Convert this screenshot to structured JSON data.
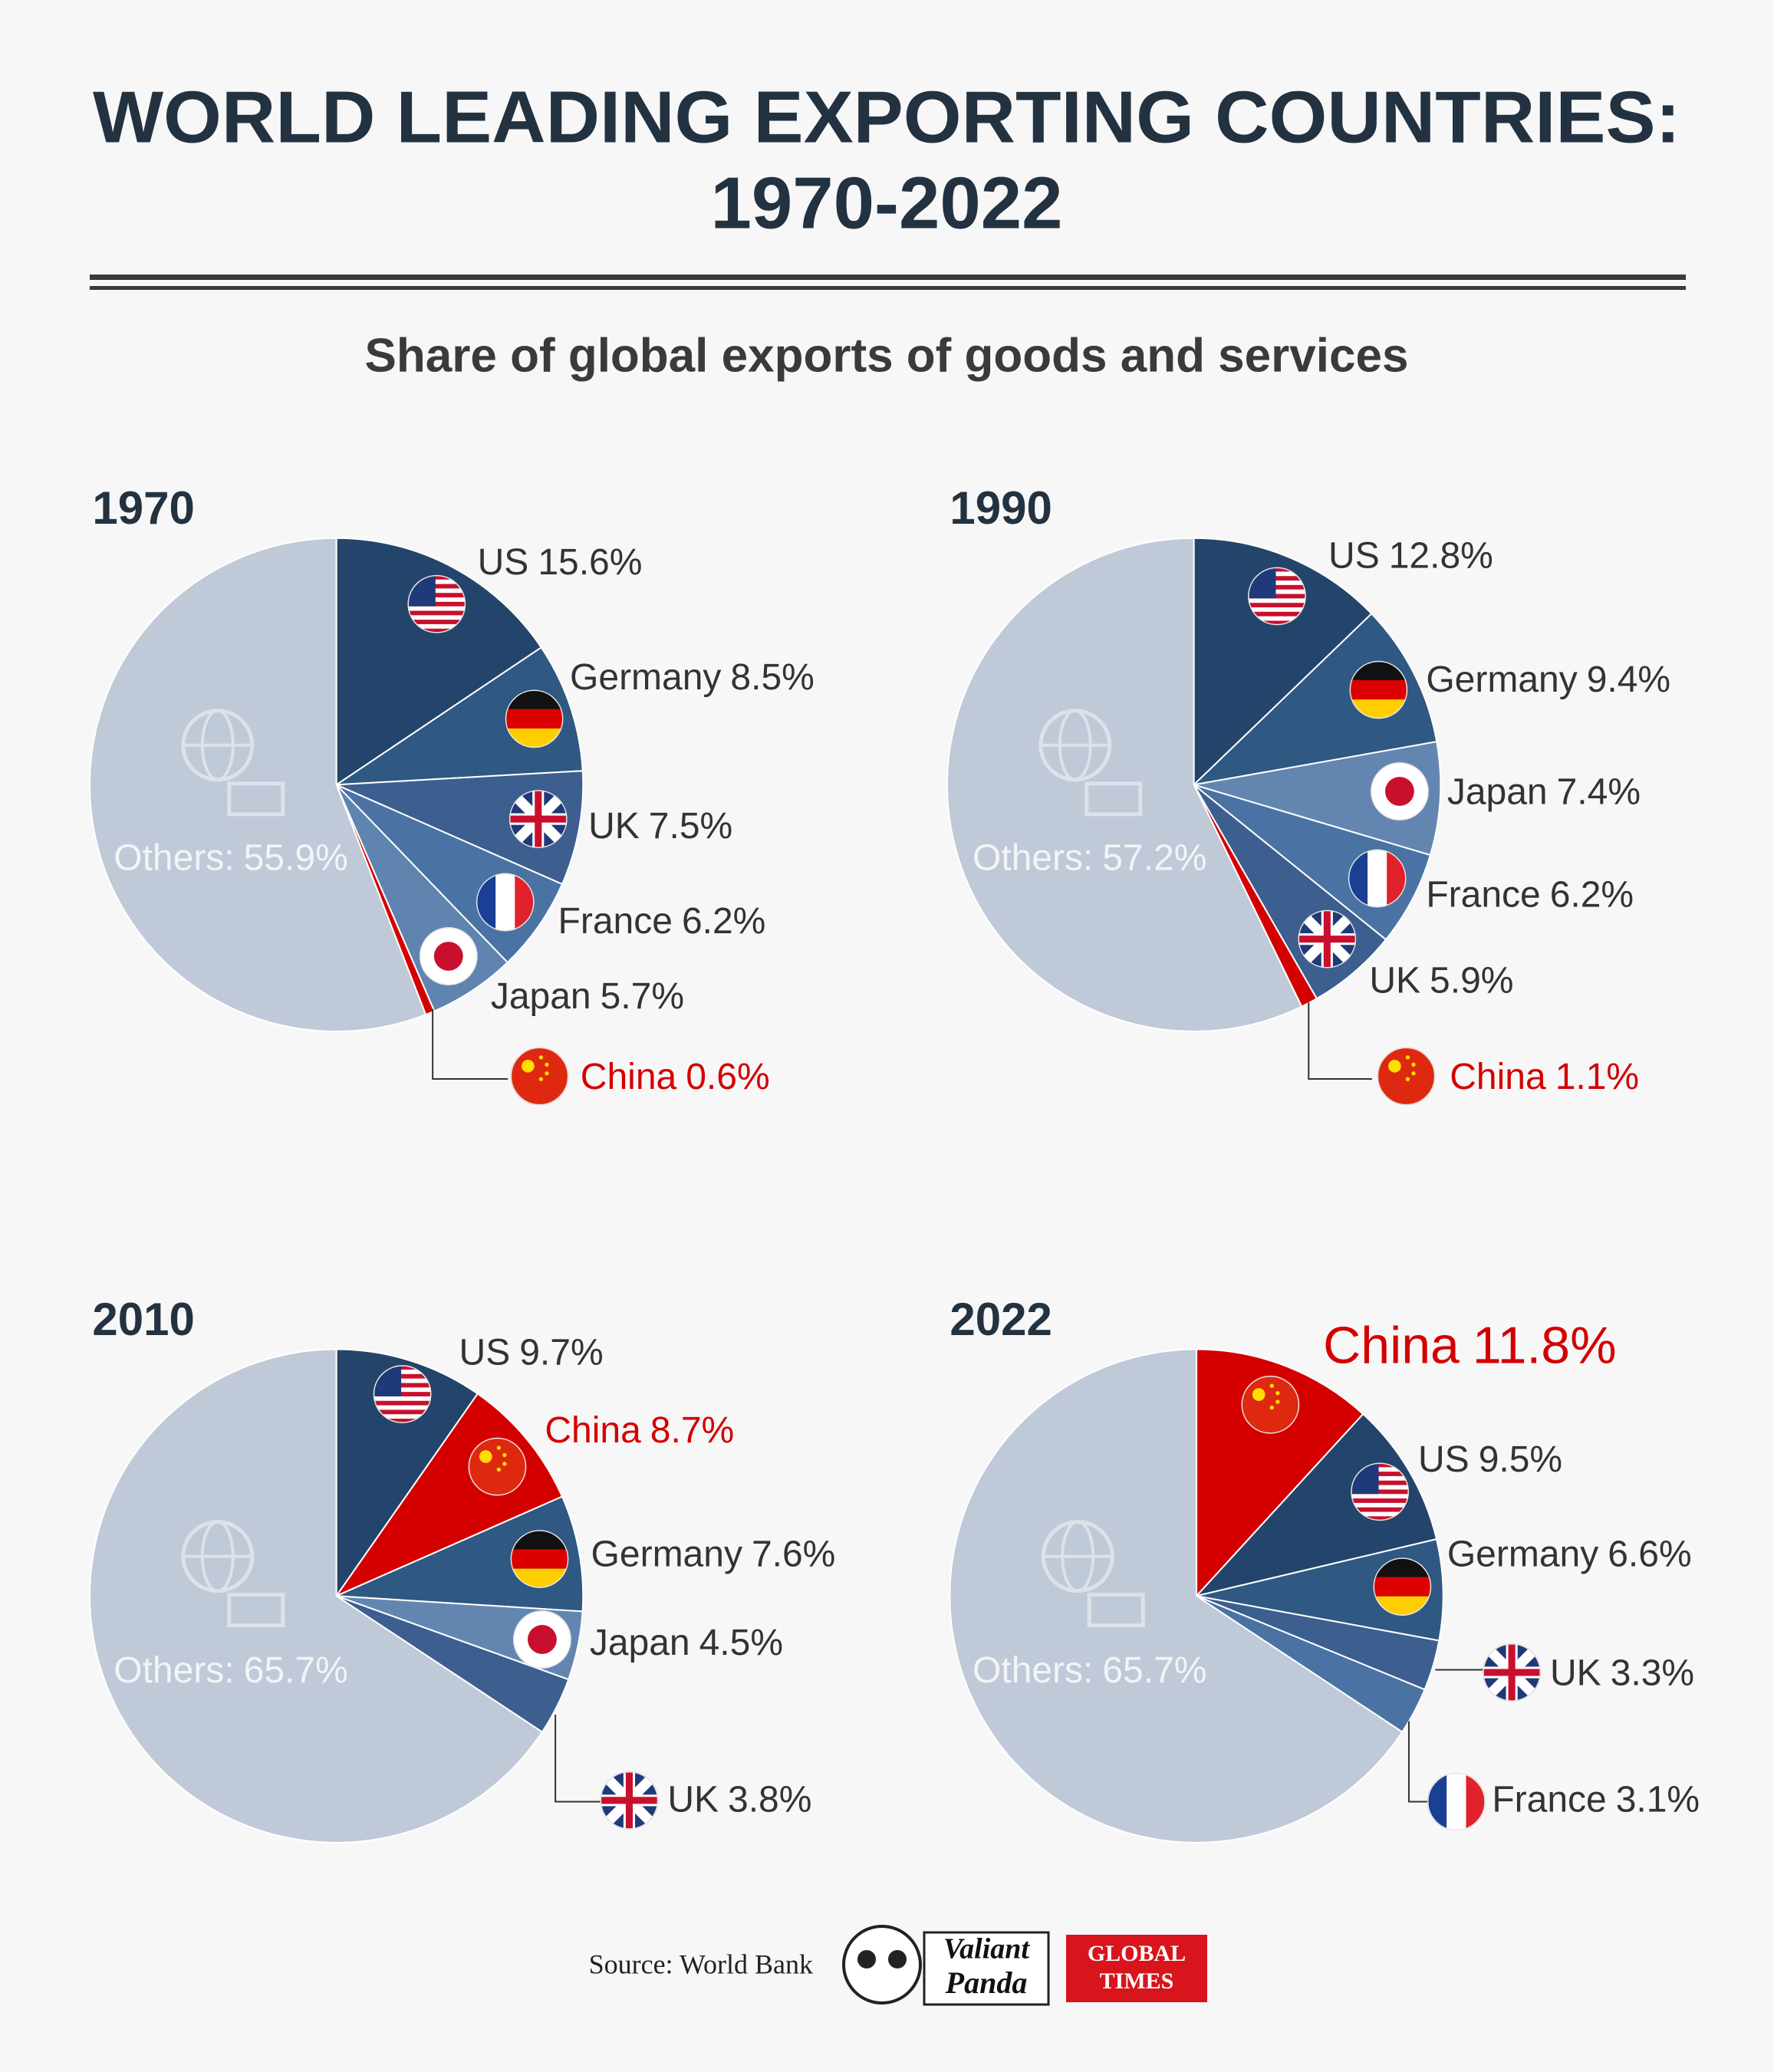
{
  "header": {
    "title_lines": [
      "WORLD LEADING EXPORTING COUNTRIES:",
      "1970-2022"
    ],
    "subtitle": "Share of global exports of goods and services"
  },
  "footer": {
    "source": "Source: World Bank",
    "logo_1": [
      "Valiant",
      "Panda"
    ],
    "logo_2": [
      "GLOBAL",
      "TIMES"
    ]
  },
  "chart_data": [
    {
      "type": "pie",
      "title": "1970",
      "categories": [
        "US",
        "Germany",
        "UK",
        "France",
        "Japan",
        "China",
        "Others:"
      ],
      "values": [
        15.6,
        8.5,
        7.5,
        6.2,
        5.7,
        0.6,
        55.9
      ],
      "value_labels": [
        "15.6%",
        "8.5%",
        "7.5%",
        "6.2%",
        "5.7%",
        "0.6%",
        "55.9%"
      ],
      "colors": [
        "#24456b",
        "#2f5882",
        "#3c5f90",
        "#4a73a3",
        "#5f84b0",
        "#d40000",
        "#c0c9d7"
      ],
      "label_colors": [
        "#333333",
        "#333333",
        "#333333",
        "#333333",
        "#333333",
        "#d40000",
        "#f2f4f7"
      ]
    },
    {
      "type": "pie",
      "title": "1990",
      "categories": [
        "US",
        "Germany",
        "Japan",
        "France",
        "UK",
        "China",
        "Others:"
      ],
      "values": [
        12.8,
        9.4,
        7.4,
        6.2,
        5.9,
        1.1,
        57.2
      ],
      "value_labels": [
        "12.8%",
        "9.4%",
        "7.4%",
        "6.2%",
        "5.9%",
        "1.1%",
        "57.2%"
      ],
      "colors": [
        "#24456b",
        "#2f5882",
        "#6386b1",
        "#4a73a3",
        "#3c5f90",
        "#d40000",
        "#c0c9d7"
      ],
      "label_colors": [
        "#333333",
        "#333333",
        "#333333",
        "#333333",
        "#333333",
        "#d40000",
        "#f2f4f7"
      ]
    },
    {
      "type": "pie",
      "title": "2010",
      "categories": [
        "US",
        "China",
        "Germany",
        "Japan",
        "UK",
        "Others:"
      ],
      "values": [
        9.7,
        8.7,
        7.6,
        4.5,
        3.8,
        65.7
      ],
      "value_labels": [
        "9.7%",
        "8.7%",
        "7.6%",
        "4.5%",
        "3.8%",
        "65.7%"
      ],
      "colors": [
        "#24456b",
        "#d40000",
        "#2f5882",
        "#6386b1",
        "#3c5f90",
        "#c0c9d7"
      ],
      "label_colors": [
        "#333333",
        "#d40000",
        "#333333",
        "#333333",
        "#333333",
        "#f2f4f7"
      ]
    },
    {
      "type": "pie",
      "title": "2022",
      "categories": [
        "China",
        "US",
        "Germany",
        "UK",
        "France",
        "Others:"
      ],
      "values": [
        11.8,
        9.5,
        6.6,
        3.3,
        3.1,
        65.7
      ],
      "value_labels": [
        "11.8%",
        "9.5%",
        "6.6%",
        "3.3%",
        "3.1%",
        "65.7%"
      ],
      "colors": [
        "#d40000",
        "#24456b",
        "#2f5882",
        "#3c5f90",
        "#4a73a3",
        "#c0c9d7"
      ],
      "label_colors": [
        "#d40000",
        "#333333",
        "#333333",
        "#333333",
        "#333333",
        "#f2f4f7"
      ]
    }
  ]
}
